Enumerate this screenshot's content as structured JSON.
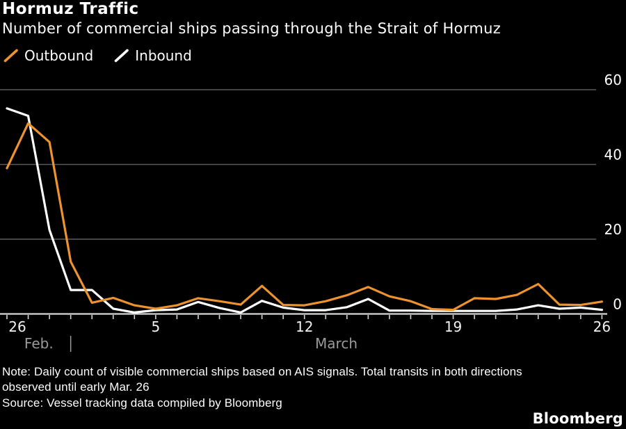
{
  "header": {
    "title": "Hormuz Traffic",
    "subtitle": "Number of commercial ships passing through the Strait of Hormuz"
  },
  "legend": {
    "items": [
      {
        "label": "Outbound",
        "color": "#EC9330"
      },
      {
        "label": "Inbound",
        "color": "#FFFFFF"
      }
    ]
  },
  "chart_data": {
    "type": "line",
    "title": "Hormuz Traffic",
    "subtitle": "Number of commercial ships passing through the Strait of Hormuz",
    "x": [
      "Feb. 26",
      "Feb. 27",
      "Feb. 28",
      "Mar. 1",
      "Mar. 2",
      "Mar. 3",
      "Mar. 4",
      "Mar. 5",
      "Mar. 6",
      "Mar. 7",
      "Mar. 8",
      "Mar. 9",
      "Mar. 10",
      "Mar. 11",
      "Mar. 12",
      "Mar. 13",
      "Mar. 14",
      "Mar. 15",
      "Mar. 16",
      "Mar. 17",
      "Mar. 18",
      "Mar. 19",
      "Mar. 20",
      "Mar. 21",
      "Mar. 22",
      "Mar. 23",
      "Mar. 24",
      "Mar. 25",
      "Mar. 26"
    ],
    "series": [
      {
        "name": "Outbound",
        "color": "#EC9330",
        "values": [
          39,
          51,
          46,
          14,
          3,
          4.3,
          2.3,
          1.4,
          2.3,
          4.2,
          3.4,
          2.5,
          7.5,
          2.4,
          2.3,
          3.4,
          5,
          7.2,
          4.7,
          3.4,
          1.3,
          1.1,
          4.2,
          4,
          5.1,
          8,
          2.5,
          2.4,
          3.3
        ]
      },
      {
        "name": "Inbound",
        "color": "#FFFFFF",
        "values": [
          55,
          53,
          22.5,
          6.4,
          6.4,
          1.4,
          0.4,
          1,
          1.2,
          3.2,
          1.6,
          0.4,
          3.5,
          1.7,
          1,
          1,
          1.8,
          4,
          0.9,
          0.9,
          0.8,
          0.8,
          0.8,
          0.8,
          1.2,
          2.3,
          1.4,
          1.7,
          1.1
        ]
      }
    ],
    "ylim": [
      0,
      60
    ],
    "y_ticks": [
      0,
      20,
      40,
      60
    ],
    "x_tick_labels": [
      {
        "label": "26",
        "index": 0
      },
      {
        "label": "5",
        "index": 7
      },
      {
        "label": "12",
        "index": 14
      },
      {
        "label": "19",
        "index": 21
      },
      {
        "label": "26",
        "index": 28
      }
    ],
    "month_row": {
      "left_label": "Feb.",
      "right_label": "March",
      "divider_index": 3
    },
    "grid": "horizontal-only",
    "legend_position": "top-left",
    "colors": {
      "background": "#000000",
      "gridline": "#5a5a5a",
      "axis_line": "#d6d6d6",
      "tick_label": "#f2f2f2",
      "month_label": "#9b9b9b"
    }
  },
  "footer": {
    "note_line1": "Note: Daily count of visible commercial ships based on AIS signals. Total transits in both directions",
    "note_line2": "observed until early Mar. 26",
    "source": "Source: Vessel tracking data compiled by Bloomberg",
    "logo": "Bloomberg"
  }
}
